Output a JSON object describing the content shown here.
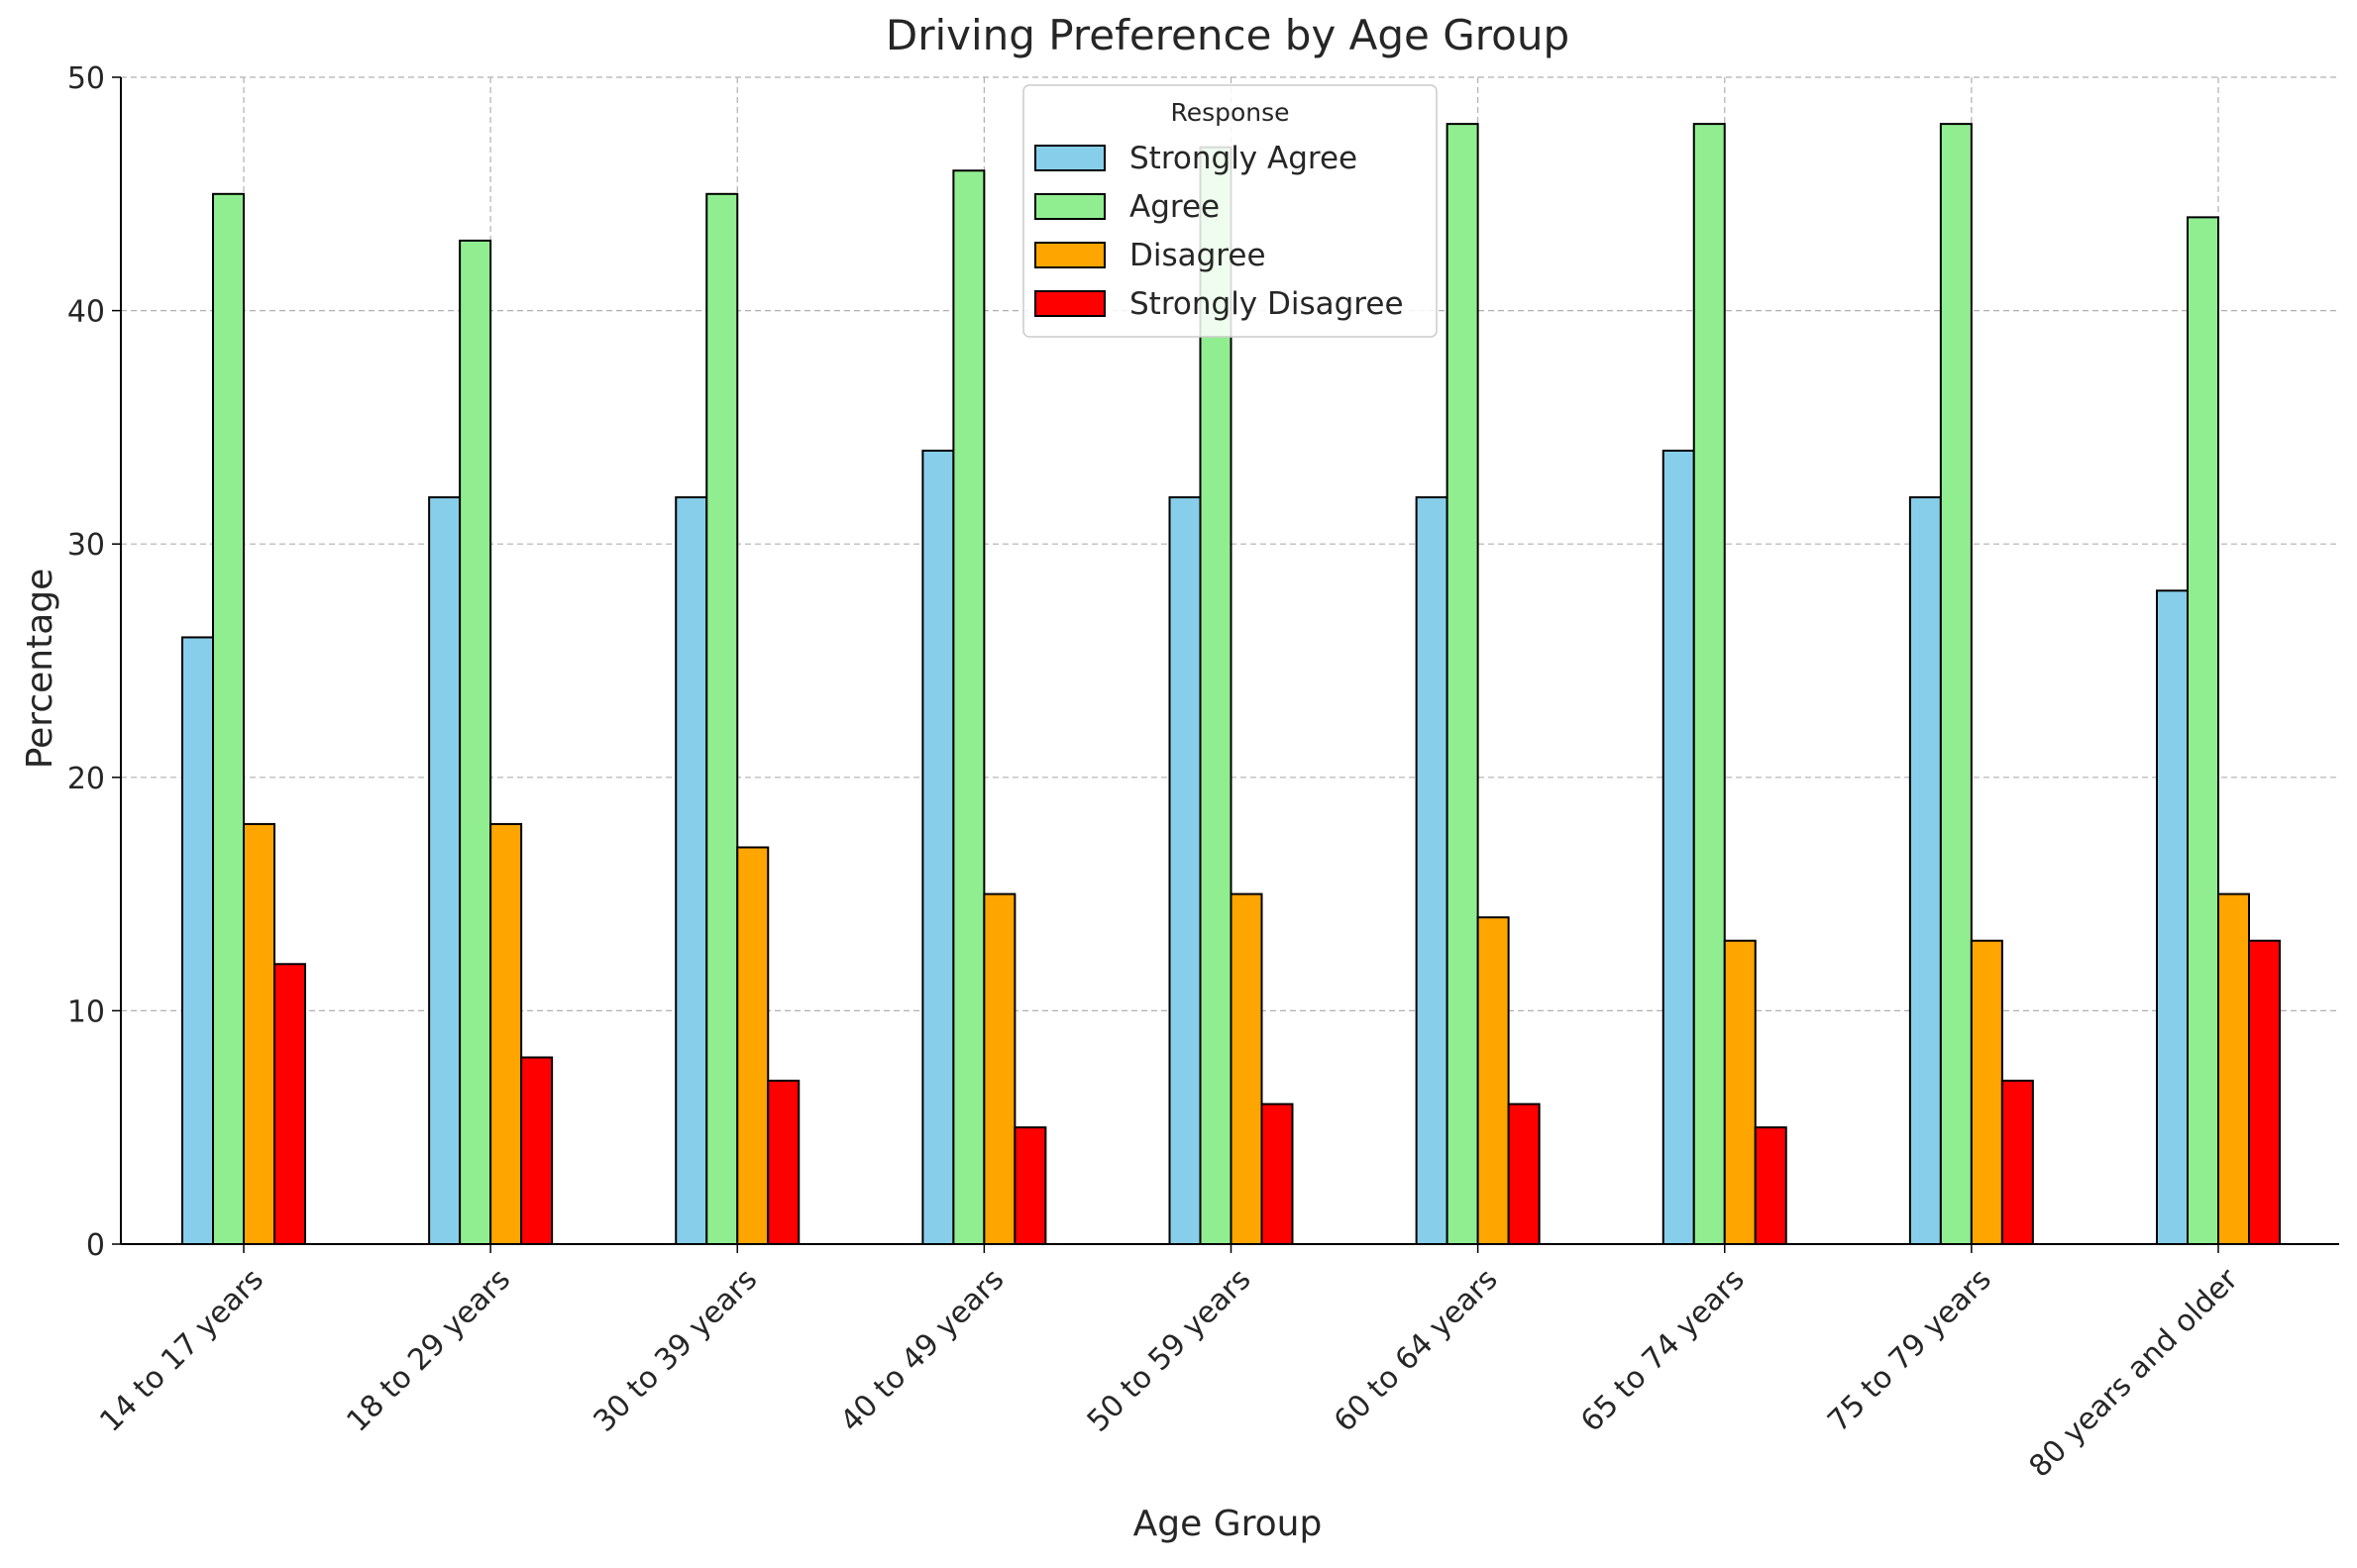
{
  "chart_data": {
    "type": "bar",
    "title": "Driving Preference by Age Group",
    "xlabel": "Age Group",
    "ylabel": "Percentage",
    "ylim": [
      0,
      50
    ],
    "yticks": [
      0,
      10,
      20,
      30,
      40,
      50
    ],
    "grid": true,
    "legend": {
      "title": "Response",
      "placement": "top-center"
    },
    "categories": [
      "14 to 17 years",
      "18 to 29 years",
      "30 to 39 years",
      "40 to 49 years",
      "50 to 59 years",
      "60 to 64 years",
      "65 to 74 years",
      "75 to 79 years",
      "80 years and older"
    ],
    "series": [
      {
        "name": "Strongly Agree",
        "color": "#87ceeb",
        "values": [
          26,
          32,
          32,
          34,
          32,
          32,
          34,
          32,
          28
        ]
      },
      {
        "name": "Agree",
        "color": "#90ee90",
        "values": [
          45,
          43,
          45,
          46,
          47,
          48,
          48,
          48,
          44
        ]
      },
      {
        "name": "Disagree",
        "color": "#ffa500",
        "values": [
          18,
          18,
          17,
          15,
          15,
          14,
          13,
          13,
          15
        ]
      },
      {
        "name": "Strongly Disagree",
        "color": "#ff0000",
        "values": [
          12,
          8,
          7,
          5,
          6,
          6,
          5,
          7,
          13
        ]
      }
    ]
  }
}
